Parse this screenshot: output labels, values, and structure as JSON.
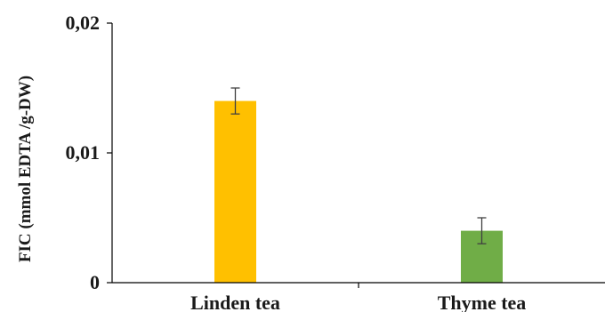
{
  "chart_data": {
    "type": "bar",
    "title": "",
    "xlabel": "",
    "ylabel": "FIC (mmol EDTA /g-DW)",
    "categories": [
      "Linden tea",
      "Thyme tea"
    ],
    "values": [
      0.014,
      0.004
    ],
    "error": [
      0.001,
      0.001
    ],
    "colors": [
      "#FFC000",
      "#70AD47"
    ],
    "ylim": [
      0,
      0.02
    ],
    "yticks": [
      0,
      0.01,
      0.02
    ],
    "ytick_labels": [
      "0",
      "0,01",
      "0,02"
    ],
    "grid": false,
    "legend": "none"
  }
}
